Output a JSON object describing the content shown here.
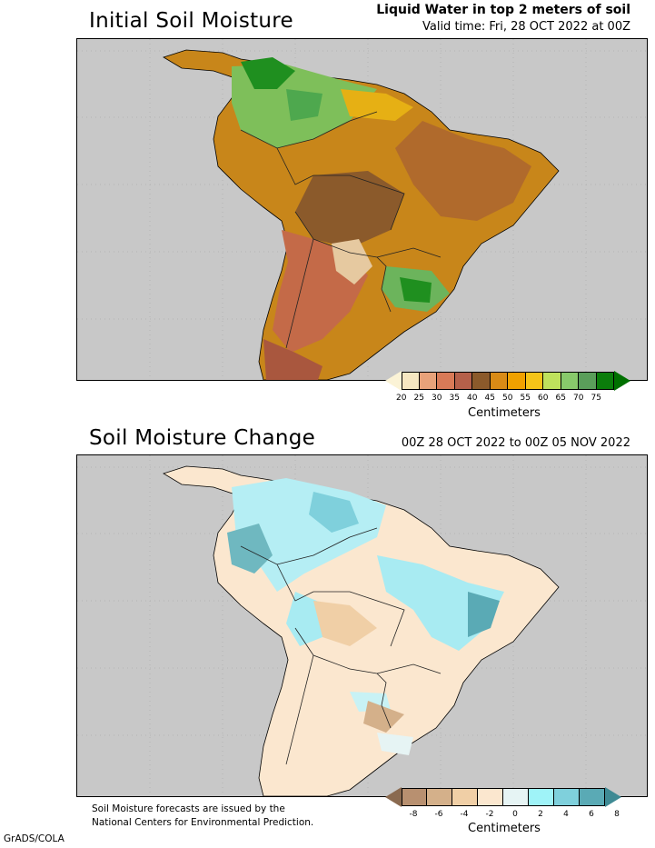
{
  "panel1": {
    "title": "Initial Soil Moisture",
    "subtitle_line1": "Liquid Water in top 2 meters of soil",
    "subtitle_line2": "Valid time: Fri, 28 OCT 2022 at 00Z",
    "colorbar": {
      "ticks": [
        "20",
        "25",
        "30",
        "35",
        "40",
        "45",
        "50",
        "55",
        "60",
        "65",
        "70",
        "75"
      ],
      "colors": [
        "#f6e7c1",
        "#e8a27a",
        "#d87a57",
        "#b5604a",
        "#8b5a2b",
        "#d98b16",
        "#f0a100",
        "#f5c418",
        "#bfe15c",
        "#88c96b",
        "#5a9e5a",
        "#0b7d0b"
      ],
      "low_color": "#fbf3d6",
      "high_color": "#007000",
      "unit": "Centimeters"
    }
  },
  "panel2": {
    "title": "Soil Moisture Change",
    "subtitle": "00Z 28 OCT 2022 to 00Z 05 NOV 2022",
    "colorbar": {
      "ticks": [
        "-8",
        "-6",
        "-4",
        "-2",
        "0",
        "2",
        "4",
        "6",
        "8"
      ],
      "colors": [
        "#b89070",
        "#d4b08a",
        "#f0cfa6",
        "#fbe7cf",
        "#e6f4f4",
        "#9ff3f8",
        "#7fd0dc",
        "#5aaab5"
      ],
      "low_color": "#8a6a50",
      "high_color": "#3f8a94",
      "unit": "Centimeters"
    }
  },
  "footer": {
    "note_line1": "Soil Moisture forecasts are issued by the",
    "note_line2": "National Centers for Environmental Prediction.",
    "credit": "GrADS/COLA"
  }
}
